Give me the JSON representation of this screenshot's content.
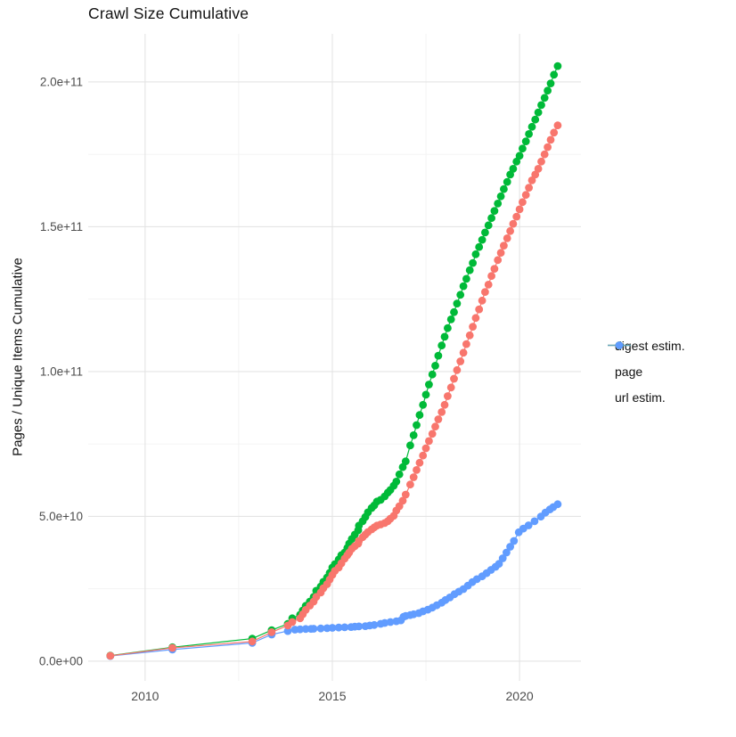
{
  "title": "Crawl Size Cumulative",
  "colors": {
    "background": "#FFFFFF",
    "grid_major": "#E4E4E4",
    "grid_minor": "#F2F2F2",
    "tick_text": "#4D4D4D",
    "text": "#111111",
    "digest": "#F8766D",
    "page": "#00BA38",
    "url": "#619CFF"
  },
  "legend": {
    "position": "right",
    "items": [
      "digest estim.",
      "page",
      "url estim."
    ]
  },
  "chart_data": {
    "type": "line",
    "title": "Crawl Size Cumulative",
    "xlabel": "",
    "ylabel": "Pages / Unique Items Cumulative",
    "grid": true,
    "legend_position": "right",
    "value_unit": "items (values stored in billions, 1e9)",
    "xlim": [
      2008.48,
      2021.64
    ],
    "ylim_e9": [
      -6.8,
      216.6
    ],
    "x_ticks": [
      {
        "v": 2010,
        "label": "2010"
      },
      {
        "v": 2015,
        "label": "2015"
      },
      {
        "v": 2020,
        "label": "2020"
      }
    ],
    "x_minor": [
      2012.5,
      2017.5
    ],
    "y_ticks": [
      {
        "v": 0,
        "label": "0.0e+00"
      },
      {
        "v": 50,
        "label": "5.0e+10"
      },
      {
        "v": 100,
        "label": "1.0e+11"
      },
      {
        "v": 150,
        "label": "1.5e+11"
      },
      {
        "v": 200,
        "label": "2.0e+11"
      }
    ],
    "y_minor": [
      25,
      75,
      125,
      175
    ],
    "draw_order": [
      "url estim.",
      "page",
      "digest estim."
    ],
    "series": [
      {
        "name": "digest estim.",
        "color": "#F8766D",
        "points": [
          [
            2009.07,
            1.85
          ],
          [
            2010.73,
            4.6
          ],
          [
            2012.86,
            6.8
          ],
          [
            2013.38,
            10.0
          ],
          [
            2013.81,
            12.3
          ],
          [
            2013.93,
            13.5
          ],
          [
            2014.14,
            14.8
          ],
          [
            2014.21,
            16.2
          ],
          [
            2014.29,
            17.7
          ],
          [
            2014.4,
            19.2
          ],
          [
            2014.5,
            20.6
          ],
          [
            2014.57,
            22.2
          ],
          [
            2014.69,
            23.7
          ],
          [
            2014.76,
            25.2
          ],
          [
            2014.86,
            26.6
          ],
          [
            2014.93,
            28.2
          ],
          [
            2015.0,
            29.8
          ],
          [
            2015.07,
            31.2
          ],
          [
            2015.17,
            32.3
          ],
          [
            2015.24,
            33.8
          ],
          [
            2015.33,
            35.4
          ],
          [
            2015.4,
            36.6
          ],
          [
            2015.45,
            37.5
          ],
          [
            2015.52,
            38.8
          ],
          [
            2015.6,
            39.7
          ],
          [
            2015.69,
            40.6
          ],
          [
            2015.71,
            41.5
          ],
          [
            2015.81,
            42.8
          ],
          [
            2015.88,
            43.7
          ],
          [
            2015.95,
            44.6
          ],
          [
            2016.05,
            45.5
          ],
          [
            2016.12,
            46.2
          ],
          [
            2016.19,
            46.8
          ],
          [
            2016.29,
            47.2
          ],
          [
            2016.4,
            47.7
          ],
          [
            2016.48,
            48.3
          ],
          [
            2016.55,
            49.2
          ],
          [
            2016.64,
            50.2
          ],
          [
            2016.71,
            52.0
          ],
          [
            2016.79,
            53.5
          ],
          [
            2016.88,
            55.4
          ],
          [
            2016.96,
            57.5
          ],
          [
            2017.08,
            61.0
          ],
          [
            2017.17,
            63.5
          ],
          [
            2017.25,
            66.0
          ],
          [
            2017.33,
            68.5
          ],
          [
            2017.42,
            71.0
          ],
          [
            2017.5,
            73.5
          ],
          [
            2017.58,
            76.0
          ],
          [
            2017.67,
            78.5
          ],
          [
            2017.75,
            81.0
          ],
          [
            2017.83,
            83.5
          ],
          [
            2017.92,
            86.0
          ],
          [
            2018.0,
            88.5
          ],
          [
            2018.08,
            91.5
          ],
          [
            2018.17,
            94.5
          ],
          [
            2018.25,
            97.5
          ],
          [
            2018.33,
            100.5
          ],
          [
            2018.42,
            103.5
          ],
          [
            2018.5,
            106.5
          ],
          [
            2018.58,
            109.5
          ],
          [
            2018.67,
            112.5
          ],
          [
            2018.75,
            115.5
          ],
          [
            2018.83,
            118.5
          ],
          [
            2018.92,
            121.5
          ],
          [
            2019.0,
            124.5
          ],
          [
            2019.08,
            127.5
          ],
          [
            2019.17,
            130.0
          ],
          [
            2019.25,
            133.0
          ],
          [
            2019.33,
            135.5
          ],
          [
            2019.42,
            138.5
          ],
          [
            2019.5,
            141.0
          ],
          [
            2019.58,
            143.5
          ],
          [
            2019.67,
            146.0
          ],
          [
            2019.75,
            148.5
          ],
          [
            2019.83,
            151.0
          ],
          [
            2019.92,
            153.5
          ],
          [
            2020.0,
            156.0
          ],
          [
            2020.08,
            158.5
          ],
          [
            2020.17,
            161.0
          ],
          [
            2020.25,
            163.5
          ],
          [
            2020.33,
            166.0
          ],
          [
            2020.42,
            168.0
          ],
          [
            2020.5,
            170.0
          ],
          [
            2020.58,
            172.5
          ],
          [
            2020.67,
            175.0
          ],
          [
            2020.75,
            177.5
          ],
          [
            2020.83,
            180.0
          ],
          [
            2020.92,
            182.5
          ],
          [
            2021.02,
            185.0
          ]
        ]
      },
      {
        "name": "page",
        "color": "#00BA38",
        "points": [
          [
            2009.07,
            1.9
          ],
          [
            2010.73,
            4.8
          ],
          [
            2012.86,
            7.8
          ],
          [
            2013.38,
            10.7
          ],
          [
            2013.81,
            12.9
          ],
          [
            2013.93,
            14.8
          ],
          [
            2014.14,
            16.0
          ],
          [
            2014.21,
            17.5
          ],
          [
            2014.29,
            19.1
          ],
          [
            2014.4,
            20.6
          ],
          [
            2014.5,
            22.2
          ],
          [
            2014.57,
            24.3
          ],
          [
            2014.69,
            25.8
          ],
          [
            2014.76,
            27.4
          ],
          [
            2014.86,
            28.9
          ],
          [
            2014.93,
            30.5
          ],
          [
            2015.0,
            32.3
          ],
          [
            2015.07,
            33.5
          ],
          [
            2015.17,
            35.1
          ],
          [
            2015.24,
            36.6
          ],
          [
            2015.33,
            37.5
          ],
          [
            2015.4,
            39.1
          ],
          [
            2015.45,
            40.6
          ],
          [
            2015.52,
            42.2
          ],
          [
            2015.6,
            43.7
          ],
          [
            2015.69,
            45.2
          ],
          [
            2015.71,
            46.8
          ],
          [
            2015.81,
            48.3
          ],
          [
            2015.88,
            49.8
          ],
          [
            2015.95,
            51.4
          ],
          [
            2016.05,
            52.9
          ],
          [
            2016.12,
            53.8
          ],
          [
            2016.19,
            55.1
          ],
          [
            2016.29,
            55.7
          ],
          [
            2016.4,
            56.9
          ],
          [
            2016.48,
            58.2
          ],
          [
            2016.55,
            59.1
          ],
          [
            2016.64,
            60.6
          ],
          [
            2016.71,
            62.0
          ],
          [
            2016.79,
            64.5
          ],
          [
            2016.88,
            67.0
          ],
          [
            2016.96,
            69.0
          ],
          [
            2017.08,
            74.5
          ],
          [
            2017.17,
            78.0
          ],
          [
            2017.25,
            81.5
          ],
          [
            2017.33,
            85.0
          ],
          [
            2017.42,
            88.5
          ],
          [
            2017.5,
            92.0
          ],
          [
            2017.58,
            95.5
          ],
          [
            2017.67,
            99.0
          ],
          [
            2017.75,
            102.0
          ],
          [
            2017.83,
            105.5
          ],
          [
            2017.92,
            109.0
          ],
          [
            2018.0,
            112.0
          ],
          [
            2018.08,
            115.0
          ],
          [
            2018.17,
            118.0
          ],
          [
            2018.25,
            120.5
          ],
          [
            2018.33,
            123.5
          ],
          [
            2018.42,
            126.5
          ],
          [
            2018.5,
            129.5
          ],
          [
            2018.58,
            132.0
          ],
          [
            2018.67,
            135.0
          ],
          [
            2018.75,
            137.5
          ],
          [
            2018.83,
            140.5
          ],
          [
            2018.92,
            143.0
          ],
          [
            2019.0,
            145.5
          ],
          [
            2019.08,
            148.0
          ],
          [
            2019.17,
            150.5
          ],
          [
            2019.25,
            153.0
          ],
          [
            2019.33,
            155.5
          ],
          [
            2019.42,
            158.0
          ],
          [
            2019.5,
            160.5
          ],
          [
            2019.58,
            163.0
          ],
          [
            2019.67,
            165.5
          ],
          [
            2019.75,
            168.0
          ],
          [
            2019.83,
            170.0
          ],
          [
            2019.92,
            172.5
          ],
          [
            2020.0,
            174.5
          ],
          [
            2020.08,
            177.0
          ],
          [
            2020.17,
            179.5
          ],
          [
            2020.25,
            182.0
          ],
          [
            2020.33,
            184.5
          ],
          [
            2020.42,
            187.0
          ],
          [
            2020.5,
            189.5
          ],
          [
            2020.58,
            192.0
          ],
          [
            2020.67,
            194.5
          ],
          [
            2020.75,
            197.0
          ],
          [
            2020.83,
            199.5
          ],
          [
            2020.92,
            202.5
          ],
          [
            2021.02,
            205.5
          ]
        ]
      },
      {
        "name": "url estim.",
        "color": "#619CFF",
        "points": [
          [
            2009.07,
            1.8
          ],
          [
            2010.73,
            4.0
          ],
          [
            2012.86,
            6.3
          ],
          [
            2013.38,
            9.2
          ],
          [
            2013.81,
            10.4
          ],
          [
            2014.0,
            10.9
          ],
          [
            2014.14,
            11.0
          ],
          [
            2014.29,
            11.1
          ],
          [
            2014.43,
            11.15
          ],
          [
            2014.5,
            11.2
          ],
          [
            2014.69,
            11.3
          ],
          [
            2014.86,
            11.4
          ],
          [
            2015.0,
            11.5
          ],
          [
            2015.17,
            11.6
          ],
          [
            2015.33,
            11.7
          ],
          [
            2015.5,
            11.8
          ],
          [
            2015.6,
            11.9
          ],
          [
            2015.71,
            12.0
          ],
          [
            2015.88,
            12.1
          ],
          [
            2016.0,
            12.3
          ],
          [
            2016.12,
            12.5
          ],
          [
            2016.29,
            12.9
          ],
          [
            2016.4,
            13.2
          ],
          [
            2016.55,
            13.5
          ],
          [
            2016.71,
            13.8
          ],
          [
            2016.83,
            14.1
          ],
          [
            2016.9,
            15.3
          ],
          [
            2016.96,
            15.6
          ],
          [
            2017.08,
            15.9
          ],
          [
            2017.17,
            16.2
          ],
          [
            2017.31,
            16.6
          ],
          [
            2017.42,
            17.2
          ],
          [
            2017.55,
            17.8
          ],
          [
            2017.67,
            18.5
          ],
          [
            2017.79,
            19.3
          ],
          [
            2017.92,
            20.2
          ],
          [
            2018.02,
            21.1
          ],
          [
            2018.14,
            22.0
          ],
          [
            2018.26,
            23.1
          ],
          [
            2018.38,
            24.0
          ],
          [
            2018.5,
            24.9
          ],
          [
            2018.62,
            26.1
          ],
          [
            2018.74,
            27.3
          ],
          [
            2018.86,
            28.3
          ],
          [
            2019.0,
            29.3
          ],
          [
            2019.12,
            30.4
          ],
          [
            2019.24,
            31.5
          ],
          [
            2019.36,
            32.6
          ],
          [
            2019.45,
            33.6
          ],
          [
            2019.55,
            35.5
          ],
          [
            2019.65,
            37.5
          ],
          [
            2019.75,
            39.5
          ],
          [
            2019.85,
            41.5
          ],
          [
            2019.98,
            44.5
          ],
          [
            2020.1,
            45.8
          ],
          [
            2020.24,
            46.9
          ],
          [
            2020.4,
            48.3
          ],
          [
            2020.57,
            49.9
          ],
          [
            2020.69,
            51.3
          ],
          [
            2020.81,
            52.4
          ],
          [
            2020.9,
            53.2
          ],
          [
            2021.02,
            54.2
          ]
        ]
      }
    ]
  }
}
